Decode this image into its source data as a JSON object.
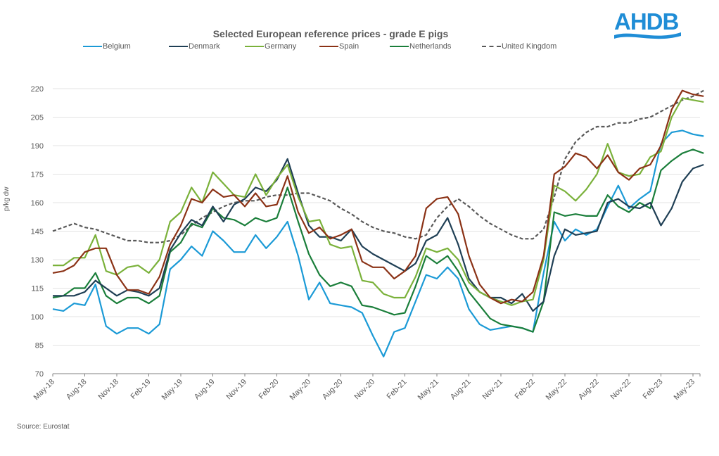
{
  "logo": {
    "text": "AHDB",
    "color": "#1f8dd6"
  },
  "source": "Source: Eurostat",
  "chart_data": {
    "type": "line",
    "title": "Selected European reference prices - grade E pigs",
    "xlabel": "",
    "ylabel": "p/kg dw",
    "ylim": [
      70,
      220
    ],
    "yticks": [
      70,
      85,
      100,
      115,
      130,
      145,
      160,
      175,
      190,
      205,
      220
    ],
    "grid": true,
    "legend_position": "top",
    "x": [
      "May-18",
      "Jun-18",
      "Jul-18",
      "Aug-18",
      "Sep-18",
      "Oct-18",
      "Nov-18",
      "Dec-18",
      "Jan-19",
      "Feb-19",
      "Mar-19",
      "Apr-19",
      "May-19",
      "Jun-19",
      "Jul-19",
      "Aug-19",
      "Sep-19",
      "Oct-19",
      "Nov-19",
      "Dec-19",
      "Jan-20",
      "Feb-20",
      "Mar-20",
      "Apr-20",
      "May-20",
      "Jun-20",
      "Jul-20",
      "Aug-20",
      "Sep-20",
      "Oct-20",
      "Nov-20",
      "Dec-20",
      "Jan-21",
      "Feb-21",
      "Mar-21",
      "Apr-21",
      "May-21",
      "Jun-21",
      "Jul-21",
      "Aug-21",
      "Sep-21",
      "Oct-21",
      "Nov-21",
      "Dec-21",
      "Jan-22",
      "Feb-22",
      "Mar-22",
      "Apr-22",
      "May-22",
      "Jun-22",
      "Jul-22",
      "Aug-22",
      "Sep-22",
      "Oct-22",
      "Nov-22",
      "Dec-22",
      "Jan-23",
      "Feb-23",
      "Mar-23",
      "Apr-23",
      "May-23",
      "Jun-23"
    ],
    "xtick_labels": [
      "May-18",
      "Aug-18",
      "Nov-18",
      "Feb-19",
      "May-19",
      "Aug-19",
      "Nov-19",
      "Feb-20",
      "May-20",
      "Aug-20",
      "Nov-20",
      "Feb-21",
      "May-21",
      "Aug-21",
      "Nov-21",
      "Feb-22",
      "May-22",
      "Aug-22",
      "Nov-22",
      "Feb-23",
      "May-23"
    ],
    "series": [
      {
        "name": "Belgium",
        "color": "#1b9ad6",
        "dash": false,
        "values": [
          104,
          103,
          107,
          106,
          117,
          95,
          91,
          94,
          94,
          91,
          96,
          125,
          130,
          137,
          132,
          145,
          140,
          134,
          134,
          143,
          136,
          142,
          150,
          132,
          109,
          118,
          107,
          106,
          105,
          102,
          90,
          79,
          92,
          94,
          108,
          122,
          120,
          126,
          120,
          104,
          96,
          93,
          94,
          95,
          94,
          92,
          123,
          150,
          140,
          146,
          143,
          146,
          158,
          169,
          157,
          162,
          166,
          191,
          197,
          198,
          196,
          195
        ]
      },
      {
        "name": "Denmark",
        "color": "#1f3f55",
        "dash": false,
        "values": [
          111,
          111,
          111,
          113,
          119,
          115,
          111,
          114,
          113,
          111,
          115,
          135,
          144,
          151,
          148,
          158,
          150,
          159,
          162,
          168,
          166,
          172,
          183,
          165,
          148,
          142,
          142,
          140,
          146,
          137,
          133,
          130,
          127,
          124,
          128,
          140,
          143,
          152,
          138,
          120,
          113,
          110,
          110,
          107,
          112,
          103,
          108,
          132,
          146,
          143,
          144,
          145,
          160,
          162,
          158,
          157,
          160,
          148,
          157,
          171,
          178,
          180
        ]
      },
      {
        "name": "Germany",
        "color": "#7ab13a",
        "dash": false,
        "values": [
          127,
          127,
          131,
          131,
          143,
          124,
          122,
          126,
          127,
          123,
          130,
          150,
          155,
          168,
          160,
          176,
          170,
          164,
          163,
          175,
          164,
          173,
          180,
          163,
          150,
          151,
          138,
          136,
          137,
          119,
          118,
          112,
          110,
          110,
          121,
          136,
          134,
          136,
          130,
          118,
          113,
          110,
          108,
          106,
          108,
          109,
          130,
          169,
          166,
          161,
          167,
          175,
          191,
          176,
          174,
          175,
          184,
          187,
          205,
          215,
          214,
          213
        ]
      },
      {
        "name": "Spain",
        "color": "#8b3216",
        "dash": false,
        "values": [
          123,
          124,
          127,
          134,
          136,
          136,
          122,
          114,
          114,
          112,
          121,
          138,
          148,
          162,
          160,
          167,
          163,
          164,
          158,
          165,
          158,
          159,
          174,
          155,
          144,
          147,
          141,
          143,
          146,
          129,
          126,
          126,
          120,
          124,
          132,
          157,
          162,
          163,
          154,
          132,
          117,
          110,
          107,
          109,
          108,
          113,
          132,
          175,
          179,
          186,
          184,
          178,
          185,
          176,
          172,
          178,
          180,
          190,
          209,
          219,
          217,
          216
        ]
      },
      {
        "name": "Netherlands",
        "color": "#1a7e3a",
        "dash": false,
        "values": [
          110,
          111,
          115,
          115,
          123,
          111,
          107,
          110,
          110,
          107,
          111,
          134,
          139,
          149,
          147,
          157,
          152,
          151,
          148,
          152,
          150,
          152,
          168,
          150,
          133,
          122,
          116,
          118,
          116,
          106,
          105,
          103,
          101,
          102,
          116,
          132,
          128,
          132,
          124,
          113,
          106,
          99,
          96,
          95,
          94,
          92,
          108,
          155,
          153,
          154,
          153,
          153,
          164,
          158,
          155,
          160,
          157,
          177,
          182,
          186,
          188,
          186
        ]
      },
      {
        "name": "United Kingdom",
        "color": "#595959",
        "dash": true,
        "values": [
          145,
          147,
          149,
          147,
          146,
          144,
          142,
          140,
          140,
          139,
          139,
          140,
          143,
          148,
          152,
          155,
          158,
          160,
          161,
          161,
          163,
          164,
          164,
          165,
          165,
          163,
          161,
          157,
          154,
          150,
          147,
          145,
          144,
          142,
          141,
          143,
          152,
          158,
          162,
          158,
          153,
          149,
          146,
          143,
          141,
          141,
          146,
          163,
          183,
          192,
          197,
          200,
          200,
          202,
          202,
          204,
          205,
          208,
          211,
          214,
          216,
          219
        ]
      }
    ]
  }
}
